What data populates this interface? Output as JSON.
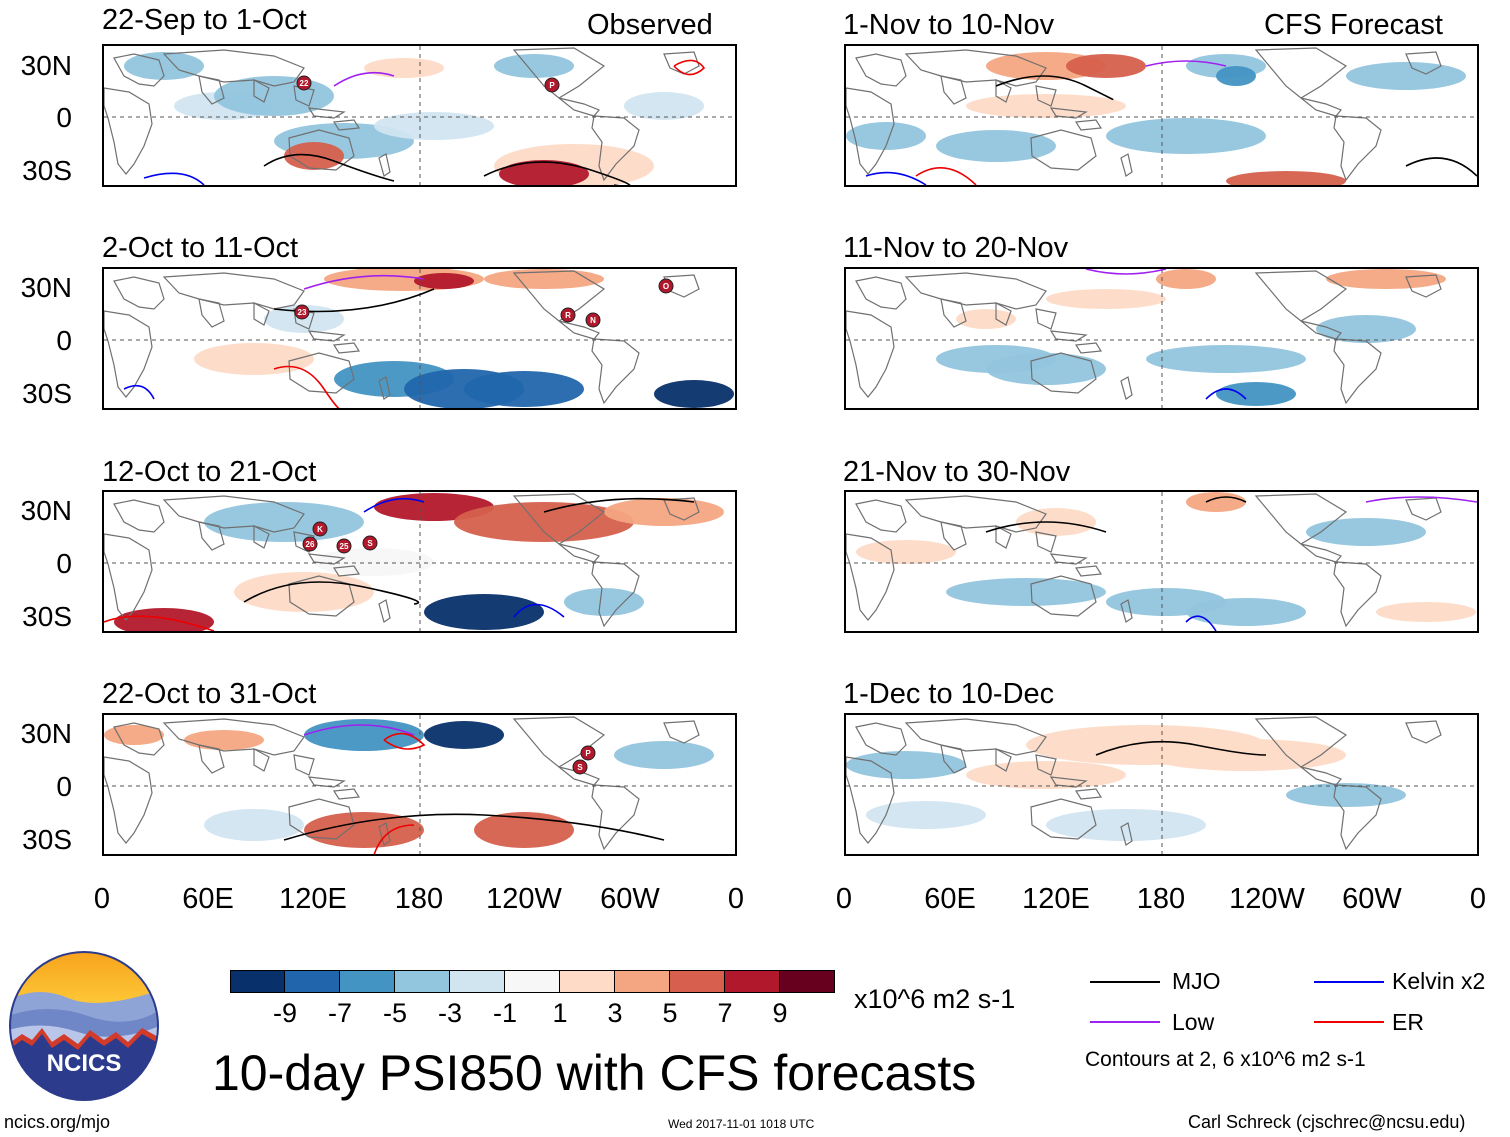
{
  "header": {
    "observed_label": "Observed",
    "forecast_label": "CFS Forecast"
  },
  "panels": {
    "left": [
      {
        "title": "22-Sep to 1-Oct"
      },
      {
        "title": "2-Oct to 11-Oct"
      },
      {
        "title": "12-Oct to 21-Oct"
      },
      {
        "title": "22-Oct to 31-Oct"
      }
    ],
    "right": [
      {
        "title": "1-Nov to 10-Nov"
      },
      {
        "title": "11-Nov to 20-Nov"
      },
      {
        "title": "21-Nov to 30-Nov"
      },
      {
        "title": "1-Dec to 10-Dec"
      }
    ]
  },
  "lat_labels": [
    "30N",
    "0",
    "30S"
  ],
  "lon_labels": [
    "0",
    "60E",
    "120E",
    "180",
    "120W",
    "60W",
    "0"
  ],
  "storm_markers": {
    "panel1": [
      "22",
      "P"
    ],
    "panel2": [
      "23",
      "R",
      "N",
      "O"
    ],
    "panel3": [
      "K",
      "26",
      "25",
      "S"
    ],
    "panel4": [
      "P",
      "S"
    ]
  },
  "colorbar": {
    "colors": [
      "#08306b",
      "#2166ac",
      "#4393c3",
      "#92c5de",
      "#d1e5f0",
      "#f7f7f7",
      "#fddbc7",
      "#f4a582",
      "#d6604d",
      "#b2182b",
      "#67001f"
    ],
    "labels": [
      "-9",
      "-7",
      "-5",
      "-3",
      "-1",
      "1",
      "3",
      "5",
      "7",
      "9"
    ],
    "units": "x10^6 m2 s-1"
  },
  "legend": {
    "mjo": "MJO",
    "mjo_color": "#000000",
    "kelvin": "Kelvin x2",
    "kelvin_color": "#0000ee",
    "low": "Low",
    "low_color": "#a020f0",
    "er": "ER",
    "er_color": "#ee0000",
    "contours_note": "Contours at 2, 6 x10^6 m2 s-1"
  },
  "main_title": "10-day PSI850 with CFS forecasts",
  "footer": {
    "url": "ncics.org/mjo",
    "timestamp": "Wed 2017-11-01 1018 UTC",
    "author": "Carl Schreck (cjschrec@ncsu.edu)"
  },
  "logo": {
    "text": "NCICS"
  }
}
